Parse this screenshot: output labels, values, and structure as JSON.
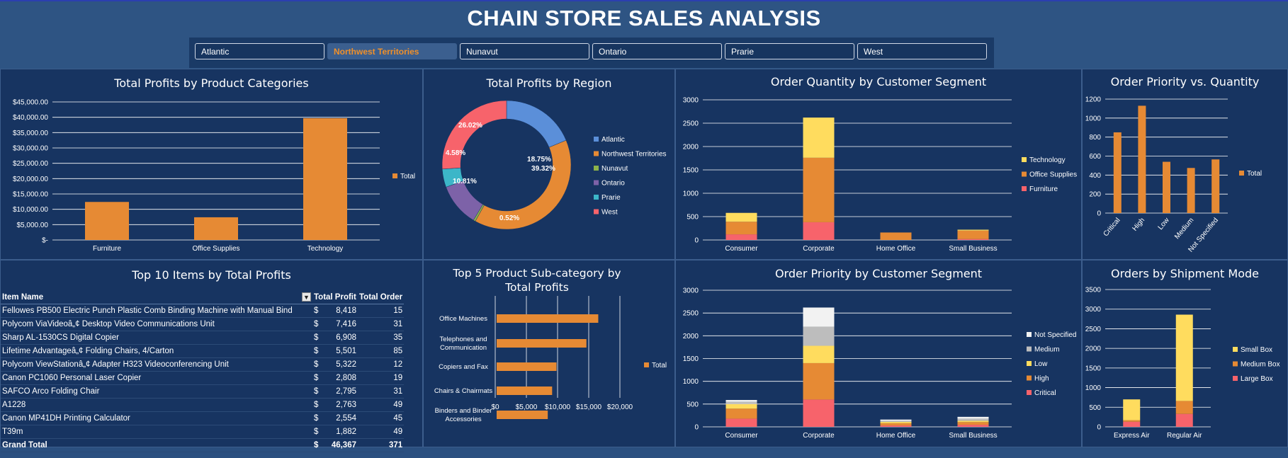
{
  "header": {
    "title": "CHAIN STORE SALES ANALYSIS"
  },
  "slicer": {
    "items": [
      {
        "label": "Atlantic",
        "selected": false
      },
      {
        "label": "Northwest Territories",
        "selected": true
      },
      {
        "label": "Nunavut",
        "selected": false
      },
      {
        "label": "Ontario",
        "selected": false
      },
      {
        "label": "Prarie",
        "selected": false
      },
      {
        "label": "West",
        "selected": false
      }
    ]
  },
  "colors": {
    "orange": "#e68a34",
    "yellow": "#ffdc5e",
    "red": "#f7636b",
    "grid": "#ffffff"
  },
  "chart_data": [
    {
      "id": "profits_by_category",
      "type": "bar",
      "title": "Total Profits by Product Categories",
      "categories": [
        "Furniture",
        "Office Supplies",
        "Technology"
      ],
      "series": [
        {
          "name": "Total",
          "values": [
            12400,
            7400,
            39700
          ]
        }
      ],
      "ylim": [
        0,
        45000
      ],
      "ytick_labels": [
        "$-",
        "$5,000.00",
        "$10,000.00",
        "$15,000.00",
        "$20,000.00",
        "$25,000.00",
        "$30,000.00",
        "$35,000.00",
        "$40,000.00",
        "$45,000.00"
      ],
      "legend": "right",
      "grid": true
    },
    {
      "id": "profits_by_region",
      "type": "pie",
      "title": "Total Profits by Region",
      "labels": [
        "Atlantic",
        "Northwest Territories",
        "Nunavut",
        "Ontario",
        "Prarie",
        "West"
      ],
      "values": [
        18.75,
        39.32,
        0.52,
        10.81,
        4.58,
        26.02
      ],
      "data_labels": [
        "18.75%",
        "39.32%",
        "0.52%",
        "10.81%",
        "4.58%",
        "26.02%"
      ],
      "colors": [
        "#5b8fd9",
        "#e68a34",
        "#8db34a",
        "#7d62a8",
        "#3cb6c8",
        "#f7636b"
      ],
      "legend": "right"
    },
    {
      "id": "qty_by_segment",
      "type": "bar",
      "title": "Order Quantity by Customer Segment",
      "categories": [
        "Consumer",
        "Corporate",
        "Home Office",
        "Small Business"
      ],
      "series": [
        {
          "name": "Furniture",
          "values": [
            120,
            380,
            0,
            20
          ]
        },
        {
          "name": "Office Supplies",
          "values": [
            270,
            1380,
            160,
            180
          ]
        },
        {
          "name": "Technology",
          "values": [
            190,
            860,
            0,
            20
          ]
        }
      ],
      "stacked": true,
      "ylim": [
        0,
        3000
      ],
      "yticks": [
        0,
        500,
        1000,
        1500,
        2000,
        2500,
        3000
      ],
      "legend_order": [
        "Technology",
        "Office Supplies",
        "Furniture"
      ],
      "legend": "right",
      "grid": true
    },
    {
      "id": "priority_vs_qty",
      "type": "bar",
      "title": "Order Priority vs. Quantity",
      "categories": [
        "Critical",
        "High",
        "Low",
        "Medium",
        "Not Specified"
      ],
      "series": [
        {
          "name": "Total",
          "values": [
            850,
            1130,
            540,
            475,
            565
          ]
        }
      ],
      "ylim": [
        0,
        1200
      ],
      "yticks": [
        0,
        200,
        400,
        600,
        800,
        1000,
        1200
      ],
      "legend": "right",
      "grid": true
    },
    {
      "id": "top5_subcategory",
      "type": "bar",
      "orientation": "horizontal",
      "title": "Top 5 Product Sub-category by Total Profits",
      "categories": [
        "Office Machines",
        "Telephones and Communication",
        "Copiers and Fax",
        "Chairs & Chairmats",
        "Binders and Binder Accessories"
      ],
      "series": [
        {
          "name": "Total",
          "values": [
            16300,
            14400,
            9600,
            8900,
            8200
          ]
        }
      ],
      "xlim": [
        0,
        20000
      ],
      "xtick_labels": [
        "$0",
        "$5,000",
        "$10,000",
        "$15,000",
        "$20,000"
      ],
      "legend": "right",
      "grid": true
    },
    {
      "id": "priority_by_segment",
      "type": "bar",
      "title": "Order Priority by Customer Segment",
      "categories": [
        "Consumer",
        "Corporate",
        "Home Office",
        "Small Business"
      ],
      "series": [
        {
          "name": "Critical",
          "values": [
            180,
            600,
            30,
            45
          ]
        },
        {
          "name": "High",
          "values": [
            220,
            800,
            50,
            60
          ]
        },
        {
          "name": "Low",
          "values": [
            100,
            380,
            30,
            30
          ]
        },
        {
          "name": "Medium",
          "values": [
            50,
            420,
            20,
            45
          ]
        },
        {
          "name": "Not Specified",
          "values": [
            40,
            420,
            30,
            40
          ]
        }
      ],
      "stacked": true,
      "ylim": [
        0,
        3000
      ],
      "yticks": [
        0,
        500,
        1000,
        1500,
        2000,
        2500,
        3000
      ],
      "legend_order": [
        "Not Specified",
        "Medium",
        "Low",
        "High",
        "Critical"
      ],
      "legend": "right",
      "grid": true
    },
    {
      "id": "orders_by_shipment",
      "type": "bar",
      "title": "Orders by Shipment Mode",
      "categories": [
        "Express Air",
        "Regular Air"
      ],
      "series": [
        {
          "name": "Large Box",
          "values": [
            130,
            330
          ]
        },
        {
          "name": "Medium Box",
          "values": [
            40,
            330
          ]
        },
        {
          "name": "Small Box",
          "values": [
            530,
            2200
          ]
        }
      ],
      "stacked": true,
      "ylim": [
        0,
        3500
      ],
      "yticks": [
        0,
        500,
        1000,
        1500,
        2000,
        2500,
        3000,
        3500
      ],
      "legend_order": [
        "Small Box",
        "Medium Box",
        "Large Box"
      ],
      "legend": "right",
      "grid": true
    }
  ],
  "top10": {
    "title": "Top 10 Items by Total Profits",
    "headers": {
      "item": "Item Name",
      "profit": "Total Profit",
      "order": "Total Order"
    },
    "currency": "$",
    "rows": [
      {
        "item": "Fellowes PB500 Electric Punch Plastic Comb Binding Machine with Manual Bind",
        "profit": "8,418",
        "order": "15"
      },
      {
        "item": "Polycom ViaVideoâ„¢ Desktop Video Communications Unit",
        "profit": "7,416",
        "order": "31"
      },
      {
        "item": "Sharp AL-1530CS Digital Copier",
        "profit": "6,908",
        "order": "35"
      },
      {
        "item": "Lifetime Advantageâ„¢ Folding Chairs, 4/Carton",
        "profit": "5,501",
        "order": "85"
      },
      {
        "item": "Polycom ViewStationâ„¢ Adapter H323 Videoconferencing Unit",
        "profit": "5,322",
        "order": "12"
      },
      {
        "item": "Canon PC1060 Personal Laser Copier",
        "profit": "2,808",
        "order": "19"
      },
      {
        "item": "SAFCO Arco Folding Chair",
        "profit": "2,795",
        "order": "31"
      },
      {
        "item": "A1228",
        "profit": "2,763",
        "order": "49"
      },
      {
        "item": "Canon MP41DH Printing Calculator",
        "profit": "2,554",
        "order": "45"
      },
      {
        "item": "T39m",
        "profit": "1,882",
        "order": "49"
      }
    ],
    "grand_total": {
      "label": "Grand Total",
      "profit": "46,367",
      "order": "371"
    }
  }
}
